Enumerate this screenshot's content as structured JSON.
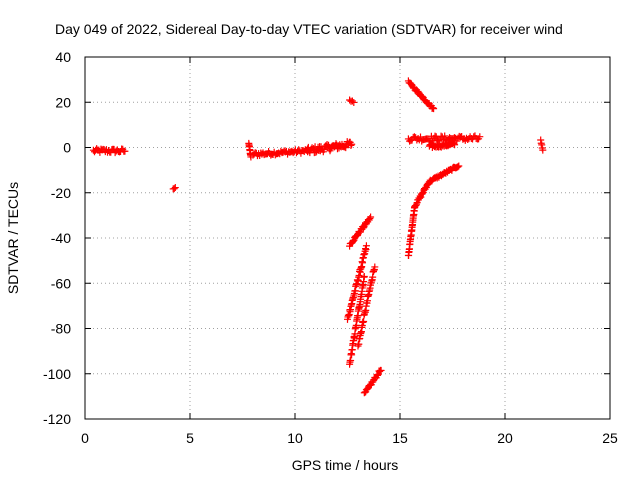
{
  "chart_data": {
    "type": "scatter",
    "title": "Day 049 of 2022, Sidereal Day-to-day VTEC variation (SDTVAR) for receiver wind",
    "xlabel": "GPS time / hours",
    "ylabel": "SDTVAR / TECUs",
    "xlim": [
      0,
      25
    ],
    "ylim": [
      -120,
      40
    ],
    "xticks": [
      0,
      5,
      10,
      15,
      20,
      25
    ],
    "yticks": [
      40,
      20,
      0,
      -20,
      -40,
      -60,
      -80,
      -100,
      -120
    ],
    "grid": true,
    "marker": "+",
    "color": "#ff0000",
    "segments": [
      {
        "name": "early-cluster",
        "start": [
          0.4,
          -1.5
        ],
        "end": [
          1.9,
          -1.5
        ],
        "n": 30,
        "jitter": 1.0
      },
      {
        "name": "isolated-4h",
        "start": [
          4.2,
          -18.5
        ],
        "end": [
          4.3,
          -17.5
        ],
        "n": 3,
        "jitter": 0.3
      },
      {
        "name": "evening-drop",
        "start": [
          7.8,
          2.0
        ],
        "end": [
          7.9,
          -4.5
        ],
        "n": 10,
        "jitter": 0.5
      },
      {
        "name": "band-8-10",
        "start": [
          8.0,
          -3.0
        ],
        "end": [
          10.6,
          -1.5
        ],
        "n": 50,
        "jitter": 0.9
      },
      {
        "name": "band-10-12.7",
        "start": [
          10.6,
          -1.5
        ],
        "end": [
          12.7,
          1.5
        ],
        "n": 60,
        "jitter": 1.5
      },
      {
        "name": "point-12.7",
        "start": [
          12.6,
          21.0
        ],
        "end": [
          12.8,
          20.0
        ],
        "n": 4,
        "jitter": 0.3
      },
      {
        "name": "descent-a",
        "start": [
          12.6,
          -43.0
        ],
        "end": [
          13.6,
          -31.0
        ],
        "n": 30,
        "jitter": 0.6
      },
      {
        "name": "descent-b",
        "start": [
          12.5,
          -76.0
        ],
        "end": [
          13.4,
          -44.0
        ],
        "n": 45,
        "jitter": 1.0
      },
      {
        "name": "descent-c",
        "start": [
          12.6,
          -96.0
        ],
        "end": [
          13.3,
          -57.0
        ],
        "n": 45,
        "jitter": 1.0
      },
      {
        "name": "descent-d",
        "start": [
          13.0,
          -88.0
        ],
        "end": [
          13.8,
          -52.0
        ],
        "n": 40,
        "jitter": 1.0
      },
      {
        "name": "descent-e",
        "start": [
          13.3,
          -109.0
        ],
        "end": [
          14.1,
          -98.0
        ],
        "n": 25,
        "jitter": 0.6
      },
      {
        "name": "slope-15.4",
        "start": [
          15.4,
          29.0
        ],
        "end": [
          16.6,
          17.0
        ],
        "n": 35,
        "jitter": 0.5
      },
      {
        "name": "flat-15.4-18.8",
        "start": [
          15.4,
          4.0
        ],
        "end": [
          18.8,
          4.0
        ],
        "n": 60,
        "jitter": 1.2
      },
      {
        "name": "flat-16.4-17.6",
        "start": [
          16.4,
          0.5
        ],
        "end": [
          17.6,
          1.5
        ],
        "n": 35,
        "jitter": 0.8
      },
      {
        "name": "rise-a",
        "start": [
          15.4,
          -48.0
        ],
        "end": [
          15.7,
          -26.0
        ],
        "n": 30,
        "jitter": 0.6
      },
      {
        "name": "rise-b",
        "start": [
          15.7,
          -26.0
        ],
        "end": [
          16.4,
          -15.0
        ],
        "n": 25,
        "jitter": 0.6
      },
      {
        "name": "rise-c",
        "start": [
          16.4,
          -15.0
        ],
        "end": [
          17.8,
          -8.0
        ],
        "n": 35,
        "jitter": 0.5
      },
      {
        "name": "point-21.7",
        "start": [
          21.7,
          3.0
        ],
        "end": [
          21.8,
          -1.0
        ],
        "n": 5,
        "jitter": 0.4
      }
    ]
  }
}
